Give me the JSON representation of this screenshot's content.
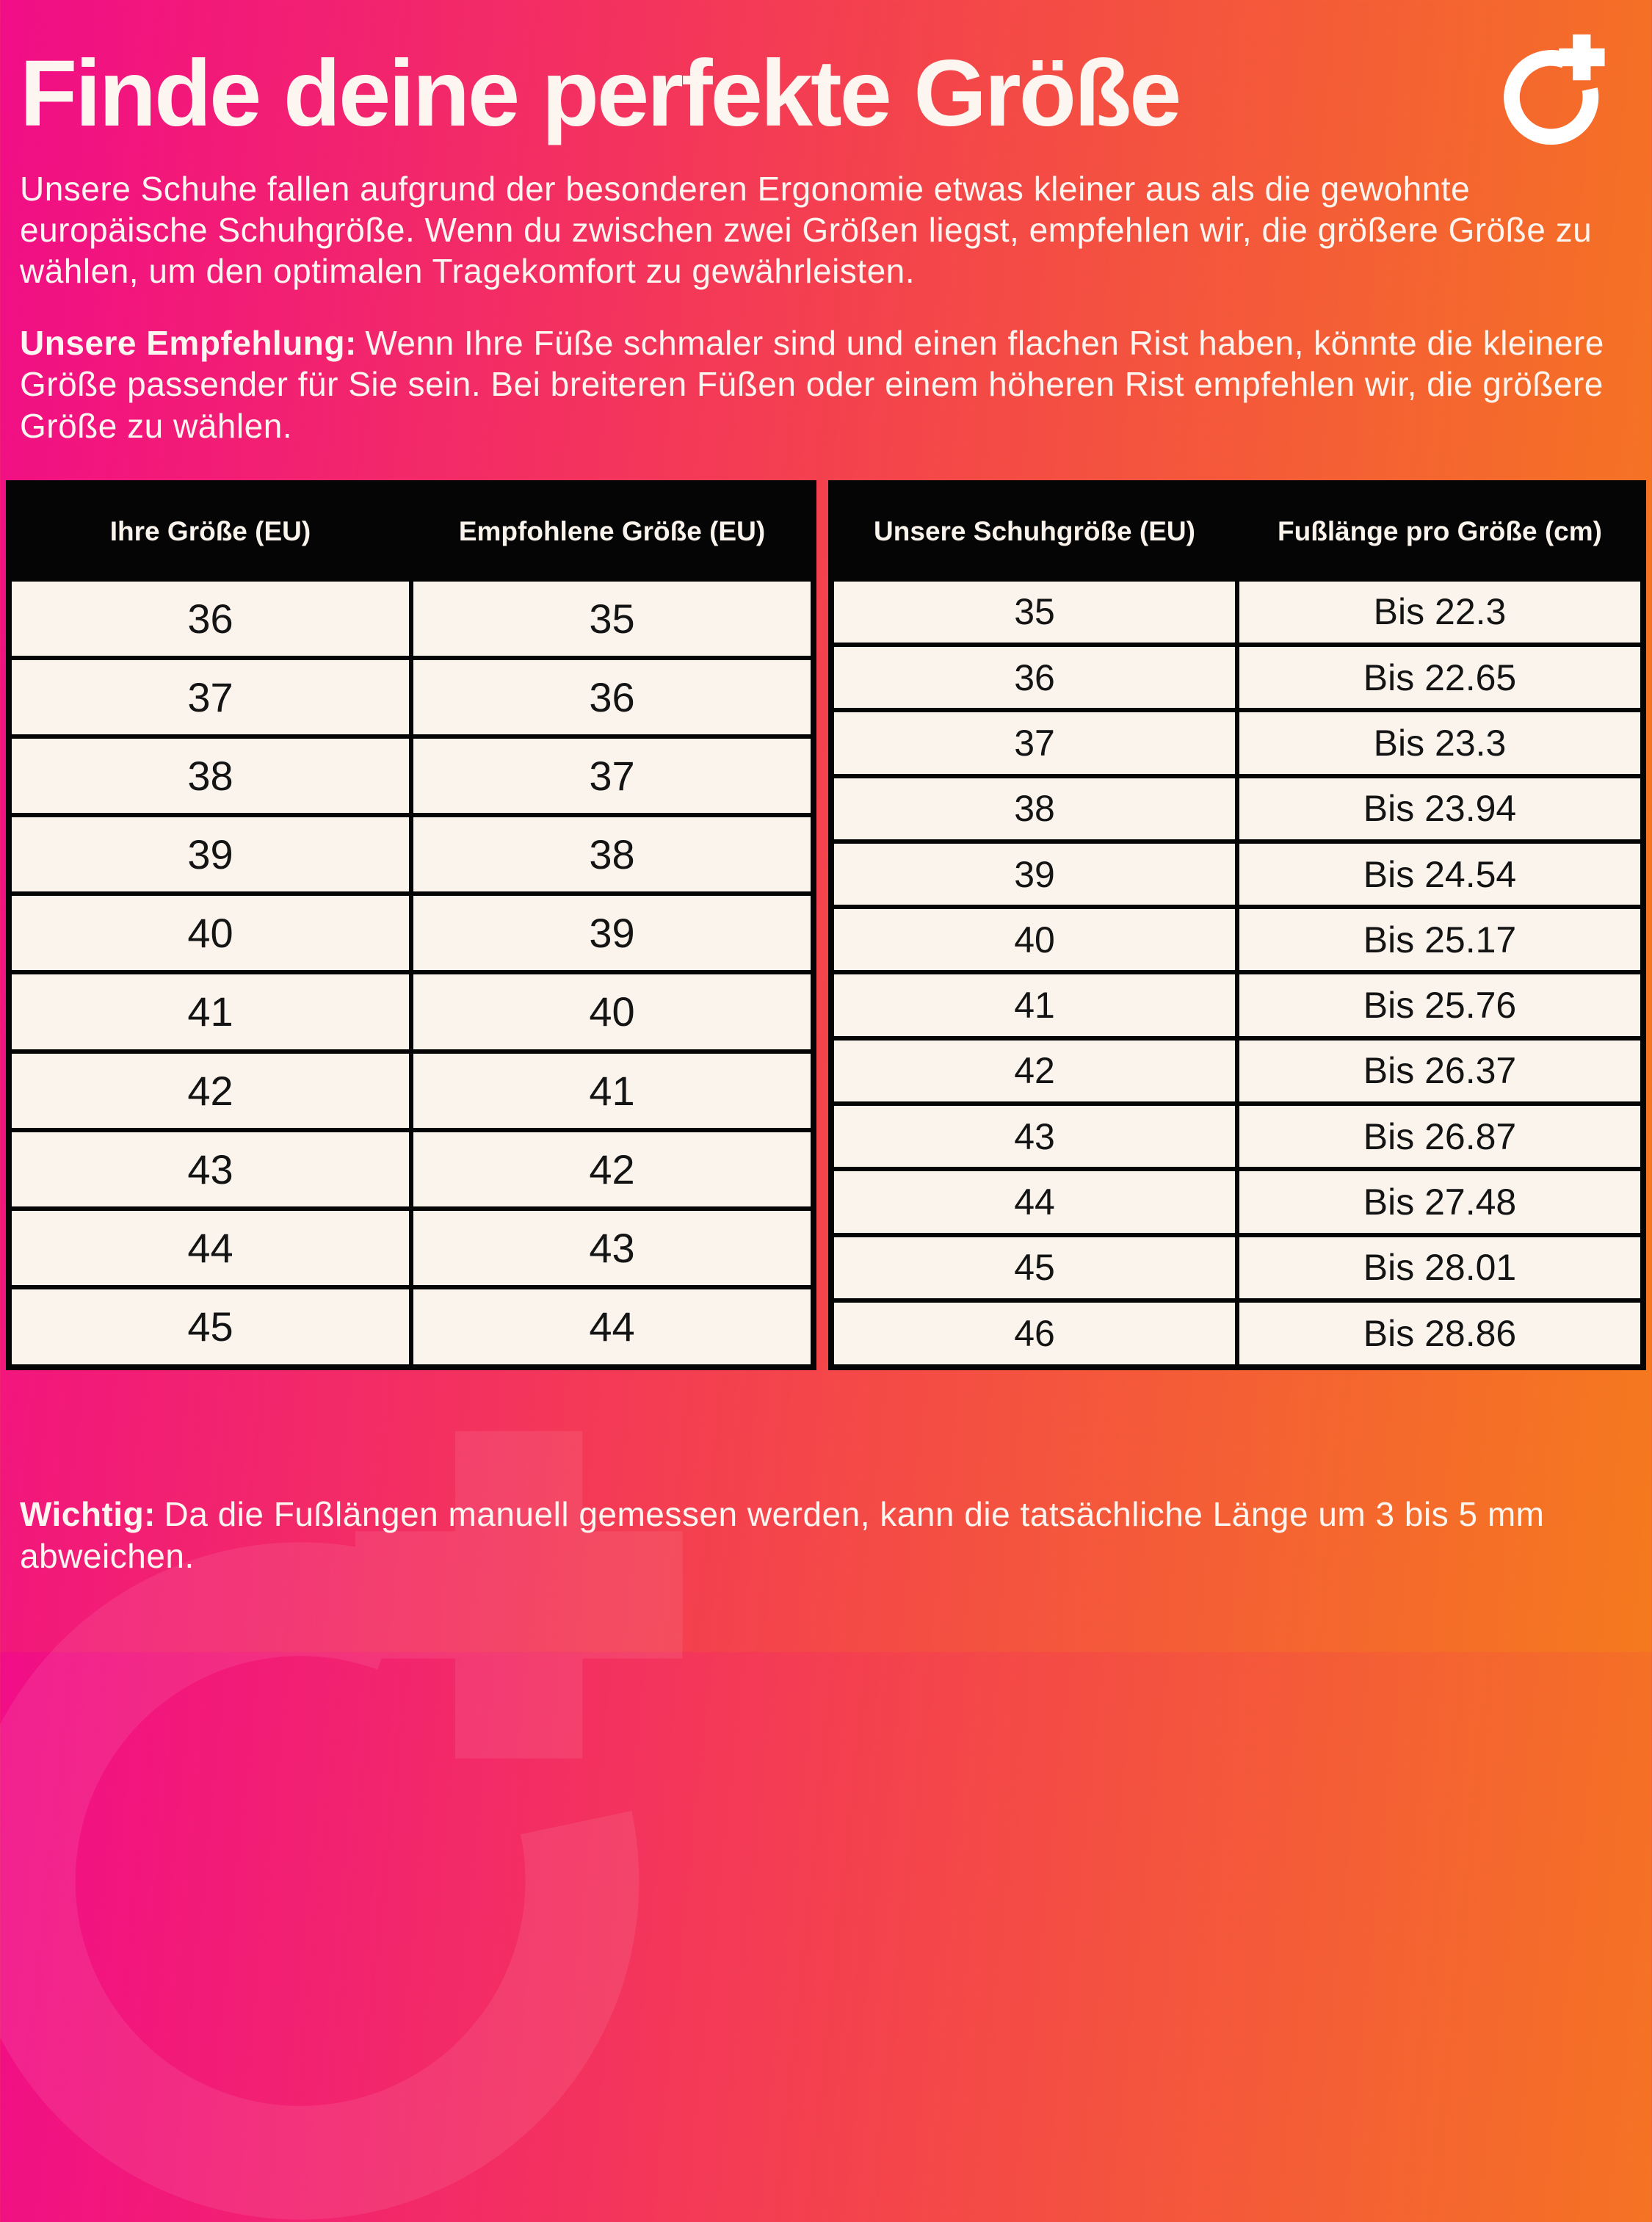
{
  "page": {
    "title": "Finde deine perfekte Größe",
    "intro": "Unsere Schuhe fallen aufgrund der besonderen Ergonomie etwas kleiner aus als die gewohnte europäische Schuhgröße. Wenn du zwischen zwei Größen liegst, empfehlen wir, die größere Größe zu wählen, um den optimalen Tragekomfort zu gewährleisten.",
    "recommendation": {
      "label": "Unsere Empfehlung:",
      "text": "Wenn Ihre Füße schmaler sind und einen flachen Rist haben, könnte die kleinere Größe passender für Sie sein. Bei breiteren Füßen oder einem höheren Rist empfehlen wir, die größere Größe zu wählen."
    },
    "note": {
      "label": "Wichtig:",
      "text": "Da die Fußlängen manuell gemessen werden, kann die tatsächliche Länge um 3 bis 5 mm abweichen."
    }
  },
  "logo": {
    "icon": "circle-plus-logo"
  },
  "tables": {
    "size_conversion": {
      "headers": [
        "Ihre Größe (EU)",
        "Empfohlene Größe (EU)"
      ],
      "rows": [
        [
          "36",
          "35"
        ],
        [
          "37",
          "36"
        ],
        [
          "38",
          "37"
        ],
        [
          "39",
          "38"
        ],
        [
          "40",
          "39"
        ],
        [
          "41",
          "40"
        ],
        [
          "42",
          "41"
        ],
        [
          "43",
          "42"
        ],
        [
          "44",
          "43"
        ],
        [
          "45",
          "44"
        ]
      ]
    },
    "foot_length": {
      "headers": [
        "Unsere Schuhgröße (EU)",
        "Fußlänge pro Größe (cm)"
      ],
      "rows": [
        [
          "35",
          "Bis 22.3"
        ],
        [
          "36",
          "Bis 22.65"
        ],
        [
          "37",
          "Bis 23.3"
        ],
        [
          "38",
          "Bis 23.94"
        ],
        [
          "39",
          "Bis 24.54"
        ],
        [
          "40",
          "Bis 25.17"
        ],
        [
          "41",
          "Bis 25.76"
        ],
        [
          "42",
          "Bis 26.37"
        ],
        [
          "43",
          "Bis 26.87"
        ],
        [
          "44",
          "Bis 27.48"
        ],
        [
          "45",
          "Bis 28.01"
        ],
        [
          "46",
          "Bis 28.86"
        ]
      ]
    }
  },
  "colors": {
    "gradient_start": "#f10d87",
    "gradient_mid": "#f4414e",
    "gradient_end": "#f57a1e",
    "table_header_bg": "#050505",
    "table_cell_bg": "#fbf4ed",
    "text_light": "#fdf5ef",
    "text_dark": "#141414"
  }
}
